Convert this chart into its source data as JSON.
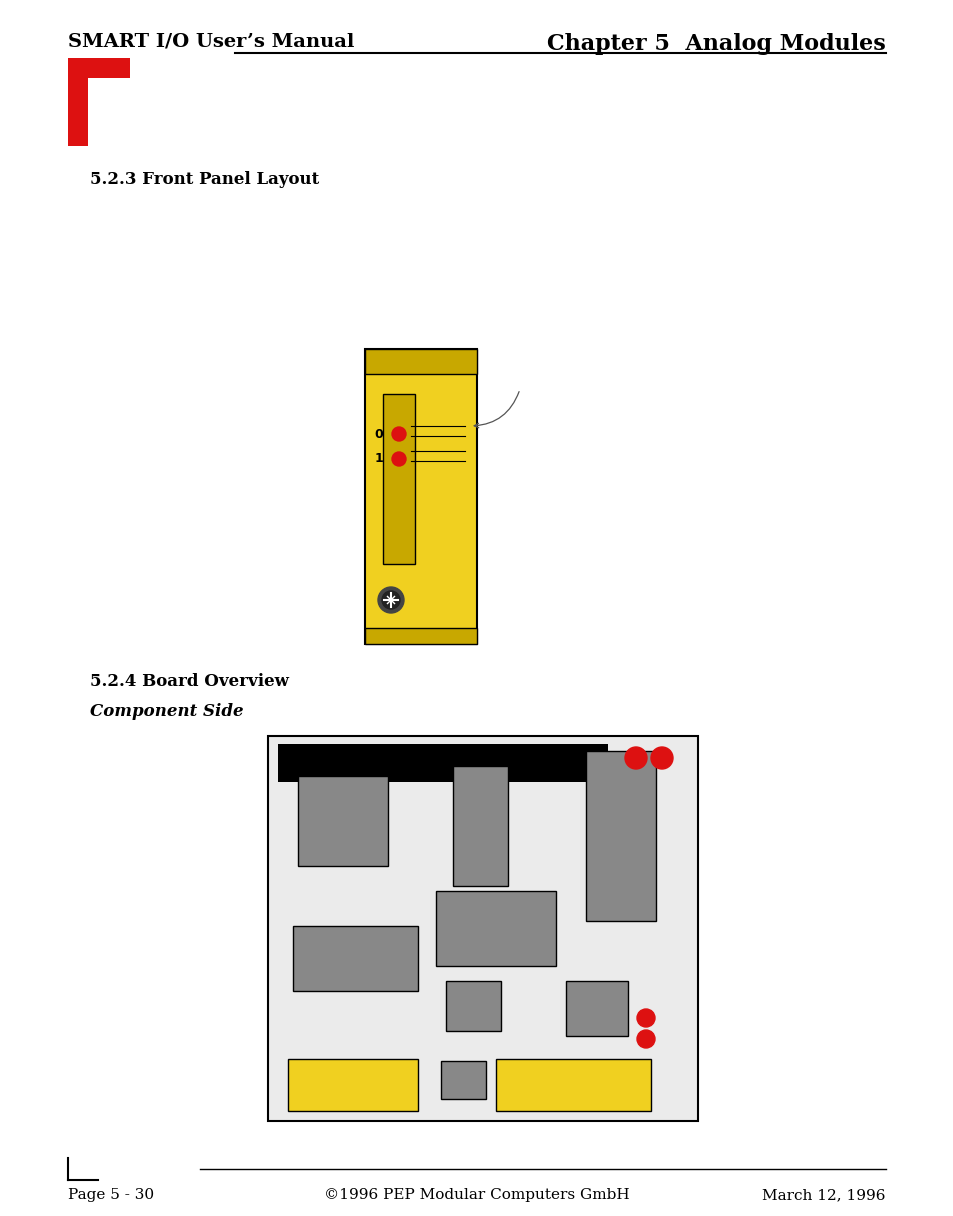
{
  "title_left": "SMART I/O User’s Manual",
  "title_right": "Chapter 5  Analog Modules",
  "section1": "5.2.3 Front Panel Layout",
  "section2": "5.2.4 Board Overview",
  "section3": "Component Side",
  "footer_left": "Page 5 - 30",
  "footer_center": "©1996 PEP Modular Computers GmbH",
  "footer_right": "March 12, 1996",
  "bg_color": "#ffffff",
  "yellow_panel": "#f0d020",
  "yellow_dark": "#c8a800",
  "gray_component": "#888888",
  "black": "#000000",
  "red_bright": "#dd1111"
}
